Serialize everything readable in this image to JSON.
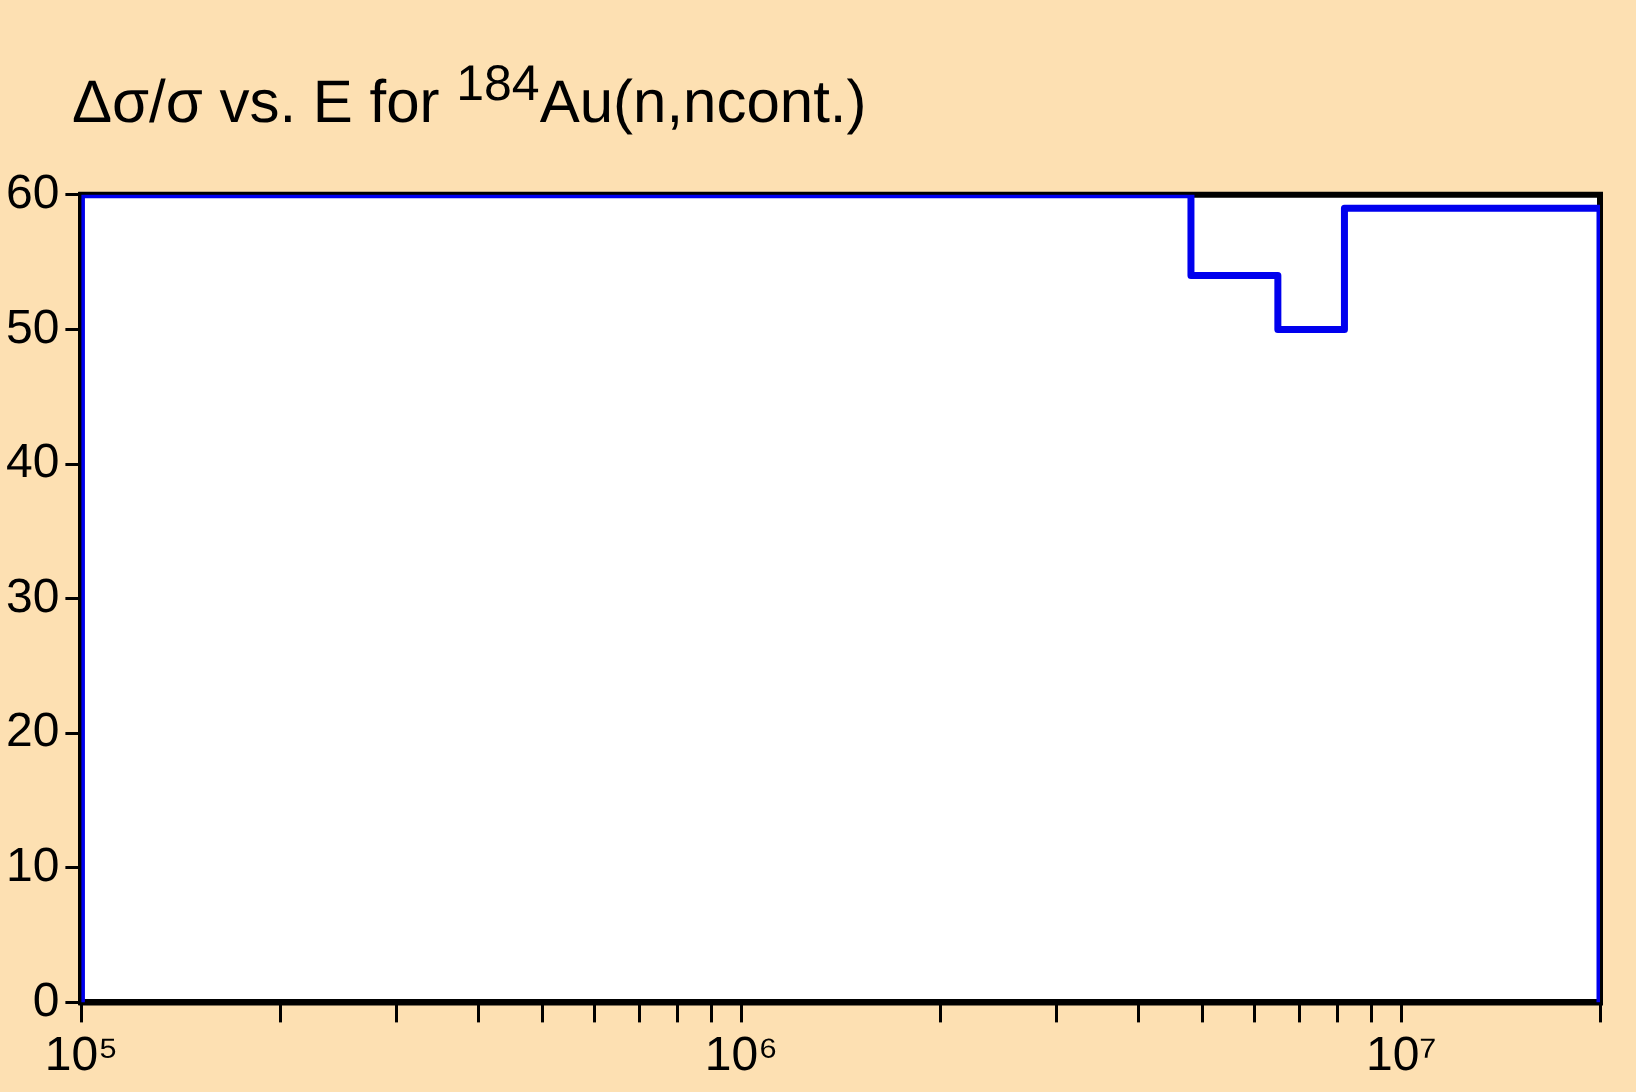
{
  "chart_data": {
    "type": "step",
    "title": "Δσ/σ vs. E for $^{184}$Au(n,ncont.)",
    "series": [
      {
        "color": "#0000ee",
        "x": [
          100000,
          100000,
          4800000,
          6500000,
          8200000,
          20000000,
          20000000
        ],
        "values": [
          0,
          60,
          54,
          50,
          59,
          59,
          0
        ]
      }
    ],
    "log": "x",
    "xlim": [
      100000,
      20000000
    ],
    "ylim": [
      0,
      60
    ],
    "xticks": [
      {
        "value": 100000,
        "label": "10⁵"
      },
      {
        "value": 200000,
        "label": null
      },
      {
        "value": 300000,
        "label": null
      },
      {
        "value": 400000,
        "label": null
      },
      {
        "value": 500000,
        "label": null
      },
      {
        "value": 600000,
        "label": null
      },
      {
        "value": 700000,
        "label": null
      },
      {
        "value": 800000,
        "label": null
      },
      {
        "value": 900000,
        "label": null
      },
      {
        "value": 1000000,
        "label": "10⁶"
      },
      {
        "value": 2000000,
        "label": null
      },
      {
        "value": 3000000,
        "label": null
      },
      {
        "value": 4000000,
        "label": null
      },
      {
        "value": 5000000,
        "label": null
      },
      {
        "value": 6000000,
        "label": null
      },
      {
        "value": 7000000,
        "label": null
      },
      {
        "value": 8000000,
        "label": null
      },
      {
        "value": 9000000,
        "label": null
      },
      {
        "value": 10000000,
        "label": "10⁷"
      },
      {
        "value": 20000000,
        "label": null
      }
    ],
    "yticks": [
      0,
      10,
      20,
      30,
      40,
      50,
      60
    ]
  }
}
